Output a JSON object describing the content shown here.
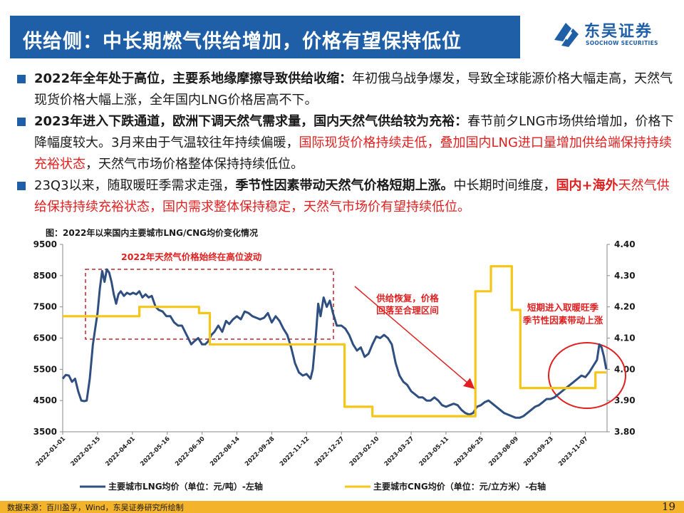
{
  "header": {
    "title": "供给侧：中长期燃气供给增加，价格有望保持低位",
    "logo_name": "东吴证券",
    "logo_sub": "SOOCHOW SECURITIES",
    "brand_color": "#1f5fa8"
  },
  "bullets": [
    {
      "parts": [
        {
          "text": "2022年全年处于高位，主要系地缘摩擦导致供给收缩：",
          "style": "b"
        },
        {
          "text": "年初俄乌战争爆发，导致全球能源价格大幅走高，天然气现货价格大幅上涨，全年国内LNG价格居高不下。",
          "style": ""
        }
      ]
    },
    {
      "parts": [
        {
          "text": "2023年进入下跌通道，欧洲下调天然气需求量，国内天然气供给较为充裕：",
          "style": "b"
        },
        {
          "text": "春节前夕LNG市场供给增加，价格下降幅度较大。3月来由于气温较往年持续偏暖，",
          "style": ""
        },
        {
          "text": "国际现货价格持续走低，叠加国内LNG进口量增加供给端保持持续充裕状态",
          "style": "r"
        },
        {
          "text": "，天然气市场价格整体保持持续低位。",
          "style": ""
        }
      ]
    },
    {
      "parts": [
        {
          "text": "23Q3以来，随取暖旺季需求走强，",
          "style": ""
        },
        {
          "text": "季节性因素带动天然气价格短期上涨。",
          "style": "b"
        },
        {
          "text": "中长期时间维度，",
          "style": ""
        },
        {
          "text": "国内+海外",
          "style": "r b"
        },
        {
          "text": "天然气供给保持持续充裕状态，国内需求整体保持稳定，天然气市场价有望持续低位。",
          "style": "r"
        }
      ]
    }
  ],
  "chart_title": "图：2022年以来国内主要城市LNG/CNG均价变化情况",
  "chart_data": {
    "type": "line",
    "x_tick_labels": [
      "2022-01-01",
      "2022-02-15",
      "2022-04-01",
      "2022-05-16",
      "2022-06-30",
      "2022-08-14",
      "2022-09-28",
      "2022-11-12",
      "2022-12-27",
      "2023-02-10",
      "2023-03-27",
      "2023-05-11",
      "2023-06-25",
      "2023-08-09",
      "2023-09-23",
      "2023-11-07"
    ],
    "y_left": {
      "min": 3500,
      "max": 9500,
      "ticks": [
        3500,
        4500,
        5500,
        6500,
        7500,
        8500,
        9500
      ]
    },
    "y_right": {
      "min": 3.8,
      "max": 4.4,
      "ticks": [
        "3.80",
        "3.90",
        "4.00",
        "4.10",
        "4.20",
        "4.30",
        "4.40"
      ]
    },
    "series": [
      {
        "name": "主要城市LNG均价（单位：元/吨）-左轴",
        "axis": "left",
        "color": "#2f4f80",
        "points": [
          [
            "2022-01-01",
            5200
          ],
          [
            "2022-01-05",
            5320
          ],
          [
            "2022-01-09",
            5300
          ],
          [
            "2022-01-13",
            5100
          ],
          [
            "2022-01-17",
            5200
          ],
          [
            "2022-01-21",
            4800
          ],
          [
            "2022-01-25",
            4500
          ],
          [
            "2022-01-29",
            4480
          ],
          [
            "2022-02-01",
            4500
          ],
          [
            "2022-02-05",
            5200
          ],
          [
            "2022-02-09",
            6300
          ],
          [
            "2022-02-12",
            6800
          ],
          [
            "2022-02-15",
            7300
          ],
          [
            "2022-02-18",
            8100
          ],
          [
            "2022-02-21",
            8650
          ],
          [
            "2022-02-24",
            8300
          ],
          [
            "2022-02-27",
            8700
          ],
          [
            "2022-03-02",
            8600
          ],
          [
            "2022-03-05",
            8300
          ],
          [
            "2022-03-08",
            7900
          ],
          [
            "2022-03-11",
            7600
          ],
          [
            "2022-03-14",
            7900
          ],
          [
            "2022-03-17",
            8000
          ],
          [
            "2022-03-21",
            7850
          ],
          [
            "2022-03-25",
            7950
          ],
          [
            "2022-03-29",
            7900
          ],
          [
            "2022-04-02",
            7950
          ],
          [
            "2022-04-06",
            7900
          ],
          [
            "2022-04-10",
            8000
          ],
          [
            "2022-04-14",
            7800
          ],
          [
            "2022-04-18",
            7900
          ],
          [
            "2022-04-22",
            7800
          ],
          [
            "2022-04-26",
            7850
          ],
          [
            "2022-05-01",
            7500
          ],
          [
            "2022-05-05",
            7400
          ],
          [
            "2022-05-10",
            7350
          ],
          [
            "2022-05-15",
            7200
          ],
          [
            "2022-05-20",
            7200
          ],
          [
            "2022-05-25",
            7000
          ],
          [
            "2022-05-30",
            6900
          ],
          [
            "2022-06-04",
            6900
          ],
          [
            "2022-06-08",
            6700
          ],
          [
            "2022-06-12",
            6500
          ],
          [
            "2022-06-16",
            6300
          ],
          [
            "2022-06-20",
            6400
          ],
          [
            "2022-06-25",
            6500
          ],
          [
            "2022-06-30",
            6300
          ],
          [
            "2022-07-04",
            6300
          ],
          [
            "2022-07-08",
            6400
          ],
          [
            "2022-07-12",
            6600
          ],
          [
            "2022-07-16",
            6700
          ],
          [
            "2022-07-21",
            6900
          ],
          [
            "2022-07-26",
            6700
          ],
          [
            "2022-07-31",
            7050
          ],
          [
            "2022-08-04",
            6950
          ],
          [
            "2022-08-09",
            7100
          ],
          [
            "2022-08-14",
            7200
          ],
          [
            "2022-08-19",
            7100
          ],
          [
            "2022-08-24",
            7350
          ],
          [
            "2022-08-29",
            7300
          ],
          [
            "2022-09-03",
            7200
          ],
          [
            "2022-09-08",
            7150
          ],
          [
            "2022-09-13",
            7100
          ],
          [
            "2022-09-18",
            7150
          ],
          [
            "2022-09-23",
            7300
          ],
          [
            "2022-09-28",
            7000
          ],
          [
            "2022-10-03",
            7200
          ],
          [
            "2022-10-08",
            7050
          ],
          [
            "2022-10-13",
            6800
          ],
          [
            "2022-10-18",
            6600
          ],
          [
            "2022-10-23",
            6200
          ],
          [
            "2022-10-28",
            5700
          ],
          [
            "2022-11-02",
            5400
          ],
          [
            "2022-11-07",
            5300
          ],
          [
            "2022-11-12",
            5350
          ],
          [
            "2022-11-17",
            5200
          ],
          [
            "2022-11-20",
            5500
          ],
          [
            "2022-11-24",
            6600
          ],
          [
            "2022-11-27",
            7600
          ],
          [
            "2022-11-30",
            7200
          ],
          [
            "2022-12-04",
            7800
          ],
          [
            "2022-12-08",
            7500
          ],
          [
            "2022-12-12",
            7700
          ],
          [
            "2022-12-16",
            7300
          ],
          [
            "2022-12-21",
            6900
          ],
          [
            "2022-12-27",
            6900
          ],
          [
            "2023-01-01",
            6800
          ],
          [
            "2023-01-06",
            6600
          ],
          [
            "2023-01-11",
            6300
          ],
          [
            "2023-01-16",
            6100
          ],
          [
            "2023-01-21",
            6200
          ],
          [
            "2023-01-26",
            5900
          ],
          [
            "2023-01-31",
            6000
          ],
          [
            "2023-02-05",
            6300
          ],
          [
            "2023-02-10",
            6550
          ],
          [
            "2023-02-15",
            6500
          ],
          [
            "2023-02-20",
            6600
          ],
          [
            "2023-02-25",
            6500
          ],
          [
            "2023-03-02",
            6300
          ],
          [
            "2023-03-07",
            5700
          ],
          [
            "2023-03-12",
            5300
          ],
          [
            "2023-03-17",
            5100
          ],
          [
            "2023-03-22",
            5000
          ],
          [
            "2023-03-27",
            4800
          ],
          [
            "2023-04-01",
            4700
          ],
          [
            "2023-04-06",
            4600
          ],
          [
            "2023-04-11",
            4600
          ],
          [
            "2023-04-16",
            4500
          ],
          [
            "2023-04-21",
            4500
          ],
          [
            "2023-04-26",
            4600
          ],
          [
            "2023-05-01",
            4500
          ],
          [
            "2023-05-06",
            4350
          ],
          [
            "2023-05-11",
            4300
          ],
          [
            "2023-05-16",
            4350
          ],
          [
            "2023-05-21",
            4400
          ],
          [
            "2023-05-26",
            4350
          ],
          [
            "2023-05-31",
            4200
          ],
          [
            "2023-06-05",
            4100
          ],
          [
            "2023-06-10",
            4050
          ],
          [
            "2023-06-15",
            4100
          ],
          [
            "2023-06-20",
            4300
          ],
          [
            "2023-06-25",
            4350
          ],
          [
            "2023-06-30",
            4450
          ],
          [
            "2023-07-05",
            4500
          ],
          [
            "2023-07-10",
            4400
          ],
          [
            "2023-07-15",
            4300
          ],
          [
            "2023-07-20",
            4200
          ],
          [
            "2023-07-25",
            4100
          ],
          [
            "2023-07-30",
            4050
          ],
          [
            "2023-08-04",
            4000
          ],
          [
            "2023-08-09",
            3950
          ],
          [
            "2023-08-14",
            3950
          ],
          [
            "2023-08-19",
            4000
          ],
          [
            "2023-08-24",
            4100
          ],
          [
            "2023-08-29",
            4200
          ],
          [
            "2023-09-03",
            4300
          ],
          [
            "2023-09-08",
            4350
          ],
          [
            "2023-09-13",
            4450
          ],
          [
            "2023-09-18",
            4550
          ],
          [
            "2023-09-23",
            4550
          ],
          [
            "2023-09-28",
            4600
          ],
          [
            "2023-10-03",
            4700
          ],
          [
            "2023-10-08",
            4800
          ],
          [
            "2023-10-13",
            4900
          ],
          [
            "2023-10-18",
            5000
          ],
          [
            "2023-10-23",
            5100
          ],
          [
            "2023-10-28",
            5200
          ],
          [
            "2023-11-02",
            5300
          ],
          [
            "2023-11-07",
            5250
          ],
          [
            "2023-11-12",
            5400
          ],
          [
            "2023-11-17",
            5600
          ],
          [
            "2023-11-22",
            5800
          ],
          [
            "2023-11-25",
            6300
          ],
          [
            "2023-11-28",
            6200
          ],
          [
            "2023-12-01",
            5900
          ],
          [
            "2023-12-04",
            5500
          ]
        ]
      },
      {
        "name": "主要城市CNG均价（单位：元/立方米）-右轴",
        "axis": "right",
        "color": "#f5c518",
        "points": [
          [
            "2022-01-01",
            4.17
          ],
          [
            "2022-04-10",
            4.17
          ],
          [
            "2022-04-10",
            4.2
          ],
          [
            "2022-06-26",
            4.2
          ],
          [
            "2022-06-26",
            4.18
          ],
          [
            "2022-07-10",
            4.18
          ],
          [
            "2022-07-10",
            4.08
          ],
          [
            "2022-12-31",
            4.08
          ],
          [
            "2022-12-31",
            3.88
          ],
          [
            "2023-02-05",
            3.88
          ],
          [
            "2023-02-05",
            3.85
          ],
          [
            "2023-06-18",
            3.85
          ],
          [
            "2023-06-18",
            4.25
          ],
          [
            "2023-07-08",
            4.25
          ],
          [
            "2023-07-08",
            4.33
          ],
          [
            "2023-08-04",
            4.33
          ],
          [
            "2023-08-04",
            4.19
          ],
          [
            "2023-08-15",
            4.19
          ],
          [
            "2023-08-15",
            3.94
          ],
          [
            "2023-11-20",
            3.94
          ],
          [
            "2023-11-20",
            3.99
          ],
          [
            "2023-12-04",
            3.99
          ]
        ]
      }
    ],
    "annotations": [
      {
        "text": "2022年天然气价格始终在高位波动",
        "color": "#e02020"
      },
      {
        "text": "供给恢复，价格",
        "color": "#e02020"
      },
      {
        "text": "回落至合理区间",
        "color": "#e02020"
      },
      {
        "text": "短期进入取暖旺季",
        "color": "#e02020"
      },
      {
        "text": "季节性因素带动上涨",
        "color": "#e02020"
      }
    ],
    "legend_position": "bottom"
  },
  "footer": {
    "source": "数据来源：百川盈孚，Wind，东吴证券研究所绘制",
    "page": "19"
  }
}
